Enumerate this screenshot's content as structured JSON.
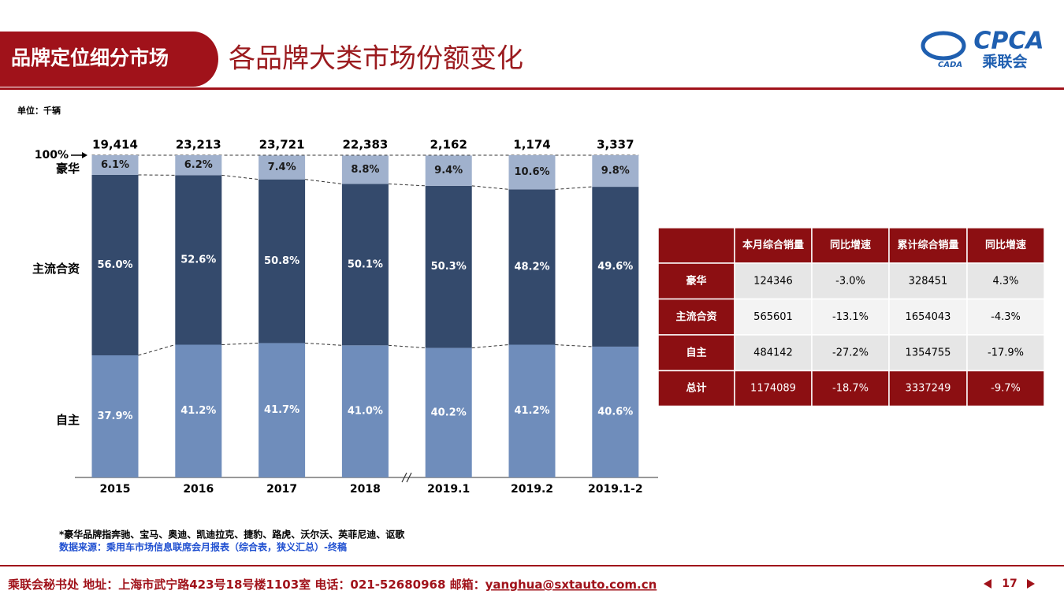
{
  "header": {
    "badge": "品牌定位细分市场",
    "title": "各品牌大类市场份额变化",
    "logo_main": "CPCA",
    "logo_sub": "乘联会",
    "logo_small": "CADA"
  },
  "unit": "单位：千辆",
  "chart_data": {
    "type": "stacked_bar",
    "categories": [
      "2015",
      "2016",
      "2017",
      "2018",
      "2019.1",
      "2019.2",
      "2019.1-2"
    ],
    "series": [
      {
        "name": "自主",
        "color": "#6f8dbb",
        "label_color": "#ffffff",
        "values": [
          37.9,
          41.2,
          41.7,
          41.0,
          40.2,
          41.2,
          40.6
        ],
        "value_labels": [
          "37.9%",
          "41.2%",
          "41.7%",
          "41.0%",
          "40.2%",
          "41.2%",
          "40.6%"
        ]
      },
      {
        "name": "主流合资",
        "color": "#344a6c",
        "label_color": "#ffffff",
        "values": [
          56.0,
          52.6,
          50.8,
          50.1,
          50.3,
          48.2,
          49.6
        ],
        "value_labels": [
          "56.0%",
          "52.6%",
          "50.8%",
          "50.1%",
          "50.3%",
          "48.2%",
          "49.6%"
        ]
      },
      {
        "name": "豪华",
        "color": "#a0b1cd",
        "label_color": "#1a1a1a",
        "values": [
          6.1,
          6.2,
          7.4,
          8.8,
          9.4,
          10.6,
          9.8
        ],
        "value_labels": [
          "6.1%",
          "6.2%",
          "7.4%",
          "8.8%",
          "9.4%",
          "10.6%",
          "9.8%"
        ]
      }
    ],
    "totals": {
      "values": [
        19414,
        23213,
        23721,
        22383,
        2162,
        1174,
        3337
      ],
      "value_labels": [
        "19,414",
        "23,213",
        "23,721",
        "22,383",
        "2,162",
        "1,174",
        "3,337"
      ]
    },
    "ylim": [
      0,
      100
    ],
    "yticks": [
      {
        "value": 100,
        "label": "100%"
      }
    ]
  },
  "table": {
    "header": [
      "本月综合销量",
      "同比增速",
      "累计综合销量",
      "同比增速"
    ],
    "rows": [
      [
        "豪华",
        "124346",
        "-3.0%",
        "328451",
        "4.3%"
      ],
      [
        "主流合资",
        "565601",
        "-13.1%",
        "1654043",
        "-4.3%"
      ],
      [
        "自主",
        "484142",
        "-27.2%",
        "1354755",
        "-17.9%"
      ]
    ],
    "total": [
      "总计",
      "1174089",
      "-18.7%",
      "3337249",
      "-9.7%"
    ]
  },
  "notes": {
    "footnote": "*豪华品牌指奔驰、宝马、奥迪、凯迪拉克、捷豹、路虎、沃尔沃、英菲尼迪、讴歌",
    "source": "数据来源：乘用车市场信息联席会月报表（综合表，狭义汇总）-终稿"
  },
  "footer": {
    "contact": "乘联会秘书处  地址：上海市武宁路423号18号楼1103室  电话：021-52680968  邮箱：",
    "email": "yanghua@sxtauto.com.cn",
    "page": "17"
  }
}
